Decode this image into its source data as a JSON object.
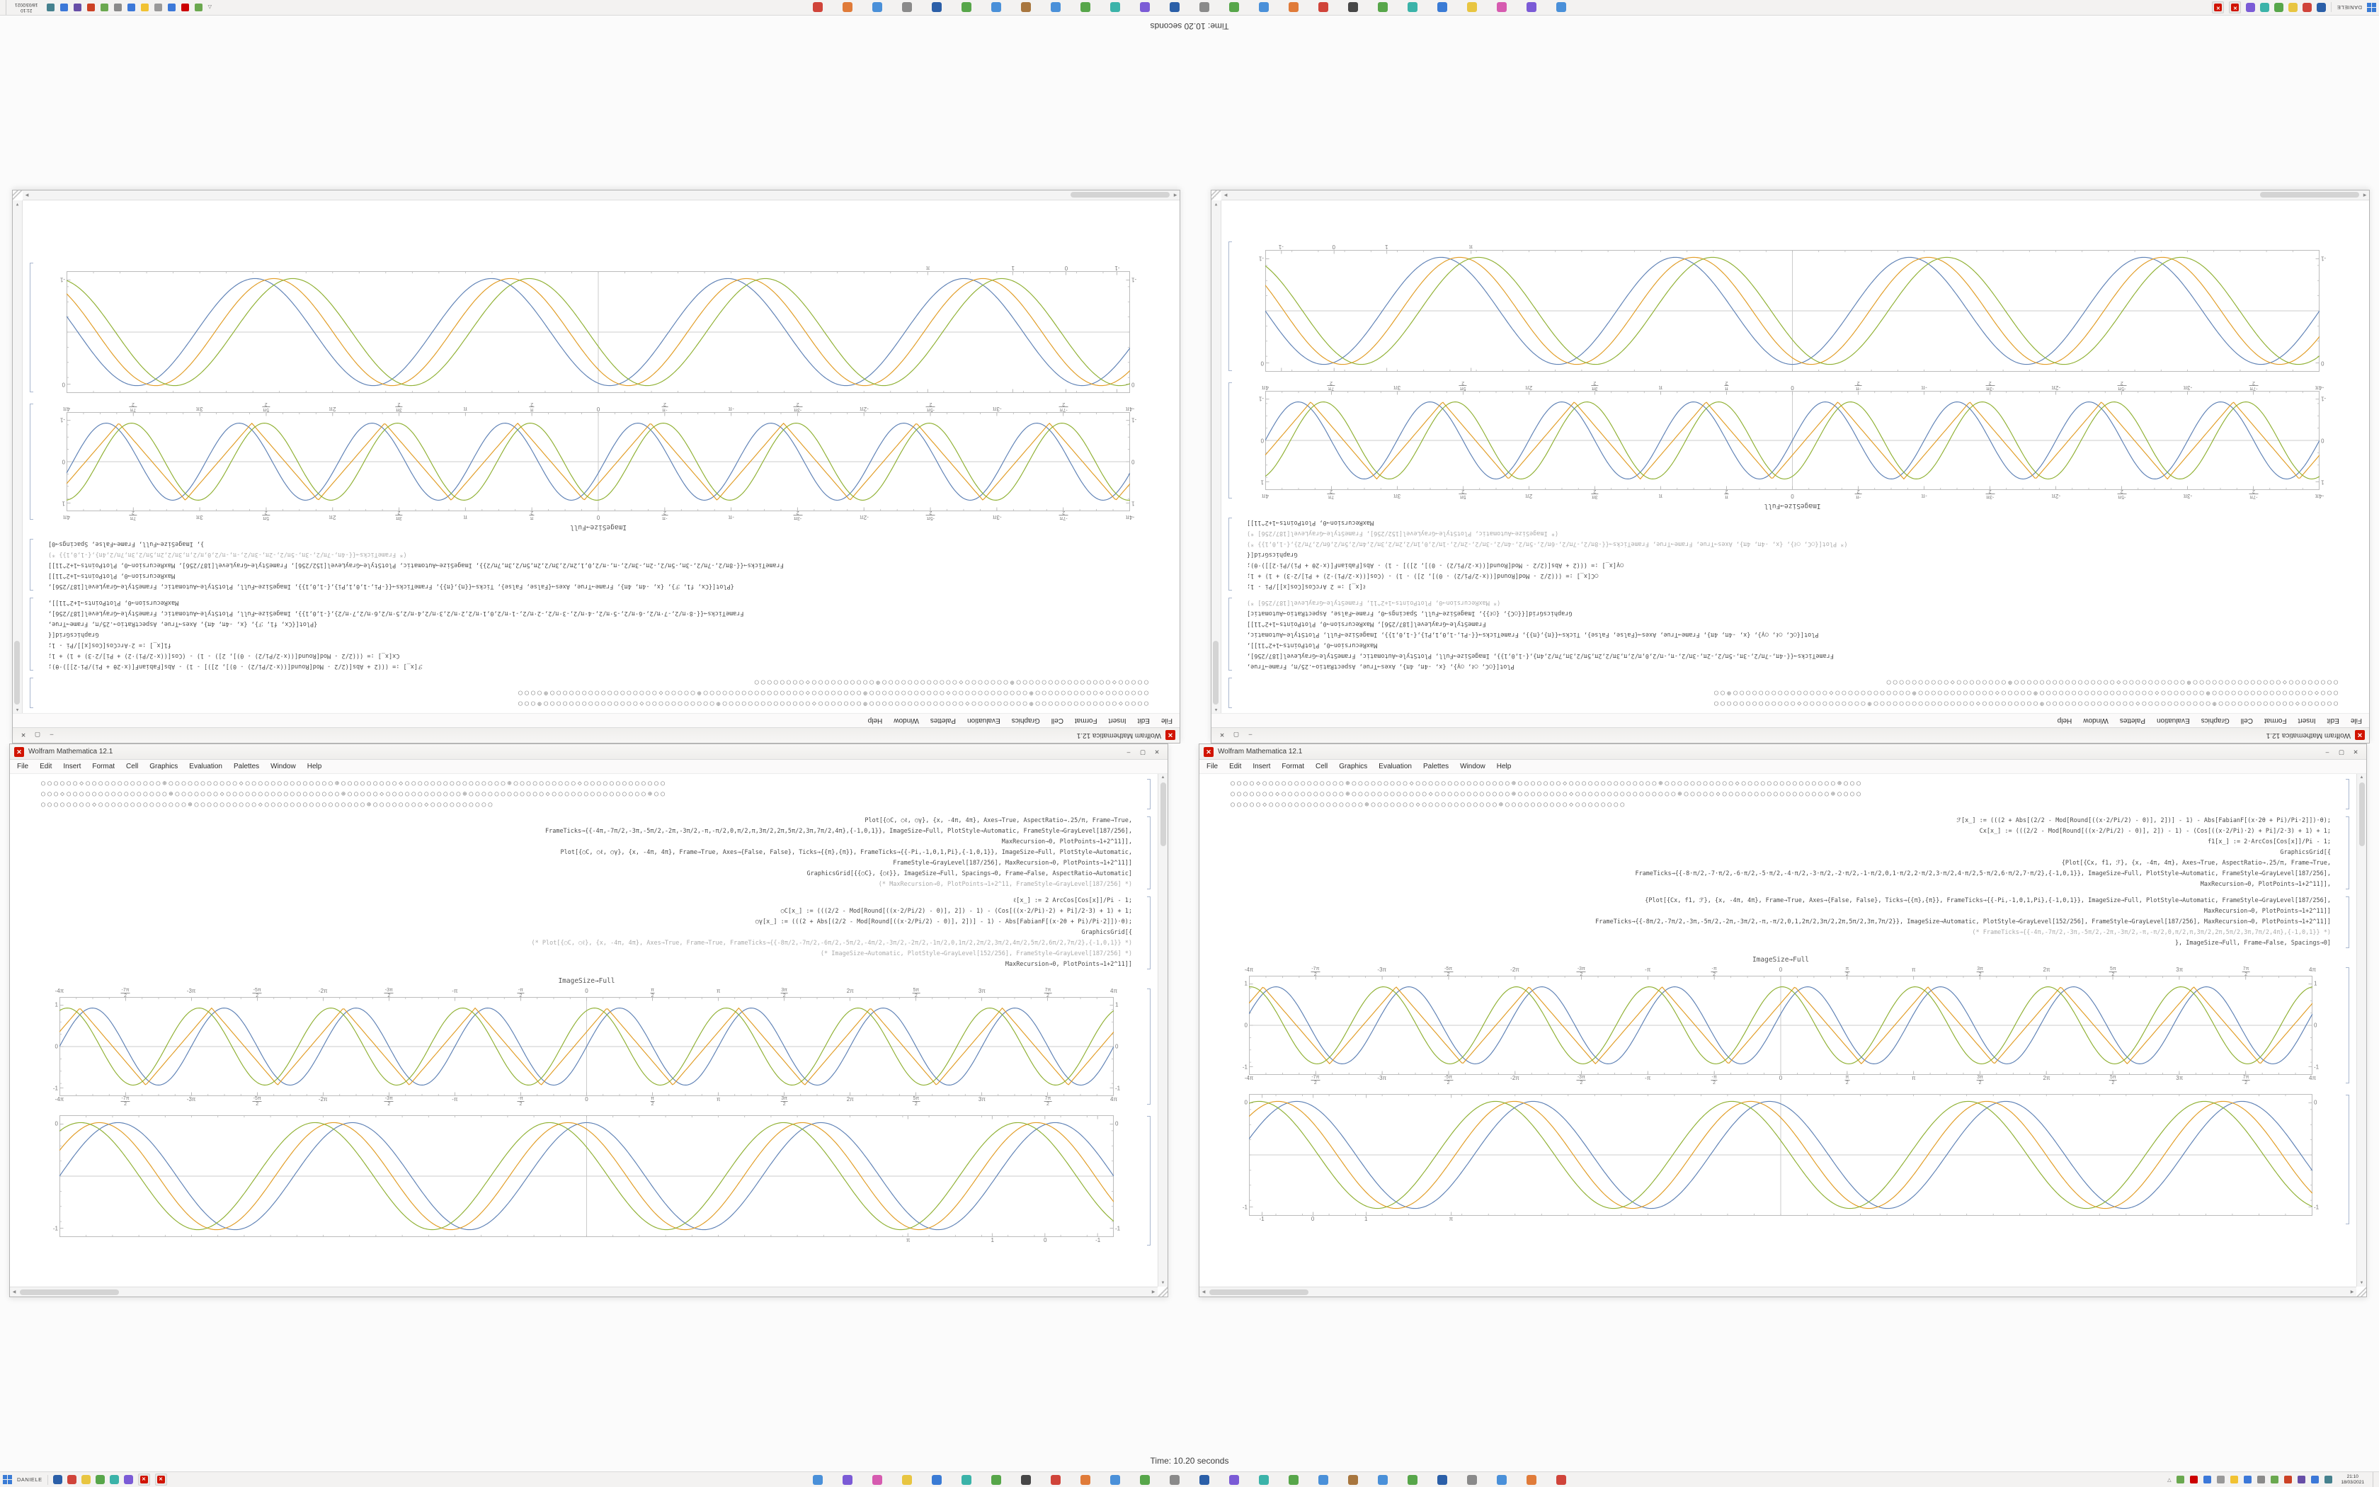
{
  "status_line": "Time: 10.20 seconds",
  "icons": {
    "spikey_glyph": "✕",
    "minimize": "–",
    "maximize": "▢",
    "close": "✕",
    "scroll_up": "▲",
    "scroll_down": "▼",
    "scroll_left": "◀",
    "scroll_right": "▶",
    "tray_chevron": "△"
  },
  "colors": {
    "frame": "#bcbcbc",
    "axis": "#cccccc",
    "spikey": "#d11300",
    "series_blue": "#5e81b5",
    "series_gold": "#e19c24",
    "series_green": "#8fb032"
  },
  "menu_items": [
    "File",
    "Edit",
    "Insert",
    "Format",
    "Cell",
    "Graphics",
    "Evaluation",
    "Palettes",
    "Window",
    "Help"
  ],
  "shared": {
    "xticks_halfpi": [
      "-4π",
      "-7π/2",
      "-3π",
      "-5π/2",
      "-2π",
      "-3π/2",
      "-π",
      "-π/2",
      "0",
      "π/2",
      "π",
      "3π/2",
      "2π",
      "5π/2",
      "3π",
      "7π/2",
      "4π"
    ]
  },
  "windows": [
    {
      "side": "left",
      "title": "Wolfram Mathematica 12.1",
      "glyph_lines": [
        "○○○○○○◇○○○○○○○○○○○○⊕○○○○○○○○○○○◇○○○○○○○○○○○○○○⊕○○○○○○○○○◇○○○○○○○○○○○○○○○○⊕○○○○○○○○○○◇○○○○○○○○○○○○○",
        "○○○◇○○○○○○○○○○○○○○○○⊕○○○○○○○◇○○○○○○○○○○○○○○○○○○⊕○○○○○◇○○○○○○○○○○○○⊕○○○○○○○○○○○○◇○○○○○○○○○○○○○○○⊕○○",
        "○○○○○○○○◇○○○○○○○○○○○○○○⊕○○○○○○○○○○◇○○○○○○○○○○○○○○○○⊕○○○○○○○○◇○○○○○○○○○○"
      ],
      "code_blocks": [
        {
          "lines": [
            {
              "t": "Plot[{○C, ○ℓ, ○γ}, {x, -4π, 4π}, Axes→True, AspectRatio→.25/π, Frame→True,"
            },
            {
              "t": "FrameTicks→{{-4π,-7π/2,-3π,-5π/2,-2π,-3π/2,-π,-π/2,0,π/2,π,3π/2,2π,5π/2,3π,7π/2,4π},{-1,0,1}}, ImageSize→Full, PlotStyle→Automatic, FrameStyle→GrayLevel[187/256],"
            },
            {
              "t": "MaxRecursion→0, PlotPoints→1+2^11]],"
            },
            {
              "t": "Plot[{○C, ○ℓ, ○γ}, {x, -4π, 4π}, Frame→True, Axes→{False, False}, Ticks→{{π},{π}}, FrameTicks→{{-Pi,-1,0,1,Pi},{-1,0,1}}, ImageSize→Full, PlotStyle→Automatic,"
            },
            {
              "t": "FrameStyle→GrayLevel[187/256], MaxRecursion→0, PlotPoints→1+2^11]]"
            },
            {
              "t": "GraphicsGrid[{{○C}, {○ℓ}}, ImageSize→Full, Spacings→0, Frame→False, AspectRatio→Automatic]"
            },
            {
              "t": "(* MaxRecursion→0, PlotPoints→1+2^11, FrameStyle→GrayLevel[187/256] *)",
              "m": true
            }
          ]
        },
        {
          "lines": [
            {
              "t": "ℓ[x_] := 2 ArcCos[Cos[x]]/Pi - 1;"
            },
            {
              "t": "○C[x_] := (((2/2 - Mod[Round[((x·2/Pi/2) - 0)], 2]) - 1) - (Cos[((x·2/Pi)·2) + Pi]/2·3) + 1) + 1;"
            },
            {
              "t": "○γ[x_] := (((2 + Abs[(2/2 - Mod[Round[((x·2/Pi/2) - 0)], 2])] - 1) - Abs[FabianF[(x·2θ + Pi)/Pi·2]])·θ);"
            },
            {
              "t": "GraphicsGrid[{"
            },
            {
              "t": "(* Plot[{○C, ○ℓ}, {x, -4π, 4π}, Axes→True, Frame→True, FrameTicks→{{-8π/2,-7π/2,-6π/2,-5π/2,-4π/2,-3π/2,-2π/2,-1π/2,0,1π/2,2π/2,3π/2,4π/2,5π/2,6π/2,7π/2},{-1,0,1}} *)",
              "m": true
            },
            {
              "t": "(* ImageSize→Automatic, PlotStyle→GrayLevel[152/256], FrameStyle→GrayLevel[187/256] *)",
              "m": true
            },
            {
              "t": "MaxRecursion→0, PlotPoints→1+2^11]]"
            }
          ]
        }
      ],
      "center_label": "ImageSize→Full",
      "plots": [
        {
          "h": 140,
          "top_labels": true,
          "xticks_ref": "xticks_halfpi",
          "minor_x": 64,
          "yticks": [
            {
              "pos": 0.08,
              "label": "1"
            },
            {
              "pos": 0.5,
              "label": "0"
            },
            {
              "pos": 0.92,
              "label": "-1"
            }
          ],
          "series": [
            {
              "shape": "sin",
              "cycles": 8,
              "phase": 0,
              "amp": 0.8,
              "color": "#5e81b5"
            },
            {
              "shape": "tri",
              "cycles": 8,
              "phase": 0.6,
              "amp": 0.8,
              "color": "#e19c24"
            },
            {
              "shape": "sin",
              "cycles": 8,
              "phase": 1.2,
              "amp": 0.8,
              "color": "#8fb032"
            }
          ]
        },
        {
          "h": 172,
          "top_labels": false,
          "minor_x": 40,
          "xticks": [
            {
              "pos": 0.805,
              "label": "π"
            },
            {
              "pos": 0.885,
              "label": "1"
            },
            {
              "pos": 0.935,
              "label": "0"
            },
            {
              "pos": 0.985,
              "label": "-1"
            }
          ],
          "yticks": [
            {
              "pos": 0.07,
              "label": "0"
            },
            {
              "pos": 0.93,
              "label": "-1"
            }
          ],
          "series": [
            {
              "shape": "sin",
              "cycles": 4.5,
              "phase": 0,
              "amp": 0.9,
              "color": "#5e81b5"
            },
            {
              "shape": "sin",
              "cycles": 4.5,
              "phase": 0.5,
              "amp": 0.9,
              "color": "#e19c24"
            },
            {
              "shape": "sin",
              "cycles": 4.5,
              "phase": 1.0,
              "amp": 0.9,
              "color": "#8fb032"
            }
          ]
        }
      ]
    },
    {
      "side": "right",
      "title": "Wolfram Mathematica 12.1",
      "glyph_lines": [
        "○○○○◇○○○○○○○○○○○○○⊕○○○○○○○○○◇○○○○○○○○○○○○○○○⊕○○○○○○○◇○○○○○○○○○○○○○○⊕○○○○○○○○○○○◇○○○○○○○○○○○○○○○⊕○○○",
        "○○○○○○○◇○○○○○○○○○○⊕○○○○○○○○○○○○◇○○○○○○○○○○○○⊕○○○○○○○○◇○○○○○○○○○○○○○○○○⊕○○○○○◇○○○○○○○○○○○○○○○○○⊕○○○○",
        "○○○○○◇○○○○○○○○○○○○○○○⊕○○○○○○○◇○○○○○○○○○○○○⊕○○○○○○○○○○◇○○○○○○○○"
      ],
      "code_blocks": [
        {
          "lines": [
            {
              "t": "ℱ[x_] := (((2 + Abs[(2/2 - Mod[Round[((x·2/Pi/2) - 0)], 2])] - 1) - Abs[FabianF[(x·2θ + Pi)/Pi·2]])·θ);"
            },
            {
              "t": "Cx[x_] := (((2/2 - Mod[Round[((x·2/Pi/2) - 0)], 2]) - 1) - (Cos[((x·2/Pi)·2) + Pi]/2·3) + 1) + 1;"
            },
            {
              "t": "f1[x_] := 2·ArcCos[Cos[x]]/Pi - 1;"
            },
            {
              "t": "GraphicsGrid[{"
            },
            {
              "t": "{Plot[{Cx, f1, ℱ}, {x, -4π, 4π}, Axes→True, AspectRatio→.25/π, Frame→True,"
            },
            {
              "t": "FrameTicks→{{-8·π/2,-7·π/2,-6·π/2,-5·π/2,-4·π/2,-3·π/2,-2·π/2,-1·π/2,0,1·π/2,2·π/2,3·π/2,4·π/2,5·π/2,6·π/2,7·π/2},{-1,0,1}}, ImageSize→Full, PlotStyle→Automatic, FrameStyle→GrayLevel[187/256],"
            },
            {
              "t": "MaxRecursion→0, PlotPoints→1+2^11]],"
            }
          ]
        },
        {
          "lines": [
            {
              "t": "{Plot[{Cx, f1, ℱ}, {x, -4π, 4π}, Frame→True, Axes→{False, False}, Ticks→{{π},{π}}, FrameTicks→{{-Pi,-1,0,1,Pi},{-1,0,1}}, ImageSize→Full, PlotStyle→Automatic, FrameStyle→GrayLevel[187/256],"
            },
            {
              "t": "MaxRecursion→0, PlotPoints→1+2^11]]"
            },
            {
              "t": "FrameTicks→{{-8π/2,-7π/2,-3π,-5π/2,-2π,-3π/2,-π,-π/2,0,1,2π/2,3π/2,2π,5π/2,3π,7π/2}}, ImageSize→Automatic, PlotStyle→GrayLevel[152/256], FrameStyle→GrayLevel[187/256], MaxRecursion→0, PlotPoints→1+2^11]]"
            },
            {
              "t": "(* FrameTicks→{{-4π,-7π/2,-3π,-5π/2,-2π,-3π/2,-π,-π/2,0,π/2,π,3π/2,2π,5π/2,3π,7π/2,4π},{-1,0,1}} *)",
              "m": true
            },
            {
              "t": "}, ImageSize→Full, Frame→False, Spacings→0]"
            }
          ]
        }
      ],
      "center_label": "ImageSize→Full",
      "plots": [
        {
          "h": 140,
          "top_labels": true,
          "xticks_ref": "xticks_halfpi",
          "minor_x": 64,
          "yticks": [
            {
              "pos": 0.08,
              "label": "1"
            },
            {
              "pos": 0.5,
              "label": "0"
            },
            {
              "pos": 0.92,
              "label": "-1"
            }
          ],
          "series": [
            {
              "shape": "sin",
              "cycles": 8,
              "phase": 0.3,
              "amp": 0.8,
              "color": "#5e81b5"
            },
            {
              "shape": "tri",
              "cycles": 8,
              "phase": 0.9,
              "amp": 0.8,
              "color": "#e19c24"
            },
            {
              "shape": "sin",
              "cycles": 8,
              "phase": 1.5,
              "amp": 0.8,
              "color": "#8fb032"
            }
          ]
        },
        {
          "h": 172,
          "top_labels": false,
          "minor_x": 40,
          "xticks": [
            {
              "pos": 0.012,
              "label": "-1"
            },
            {
              "pos": 0.06,
              "label": "0"
            },
            {
              "pos": 0.11,
              "label": "1"
            },
            {
              "pos": 0.19,
              "label": "π"
            }
          ],
          "yticks": [
            {
              "pos": 0.07,
              "label": "0"
            },
            {
              "pos": 0.93,
              "label": "-1"
            }
          ],
          "series": [
            {
              "shape": "sin",
              "cycles": 4.5,
              "phase": 0.3,
              "amp": 0.9,
              "color": "#5e81b5"
            },
            {
              "shape": "sin",
              "cycles": 4.5,
              "phase": 0.8,
              "amp": 0.9,
              "color": "#e19c24"
            },
            {
              "shape": "sin",
              "cycles": 4.5,
              "phase": 1.3,
              "amp": 0.9,
              "color": "#8fb032"
            }
          ]
        }
      ]
    }
  ],
  "taskbar": {
    "left_label": "DANIELE",
    "left_icons": [
      "#2b5fa8",
      "#d0443a",
      "#e8c541",
      "#57a64a",
      "#3bb3a9",
      "#7b5bd6"
    ],
    "window_buttons": [
      "mathematica-window-1",
      "mathematica-window-2"
    ],
    "pinned_icons": [
      "#4a90d9",
      "#7b5bd6",
      "#d65bb0",
      "#e8c541",
      "#3a7bd5",
      "#3bb3a9",
      "#57a64a",
      "#474747",
      "#d0443a",
      "#e07b39",
      "#4a90d9",
      "#57a64a",
      "#8a8a8a",
      "#2b5fa8",
      "#7b5bd6",
      "#3bb3a9",
      "#57a64a",
      "#4a90d9",
      "#a8763e",
      "#4a90d9",
      "#57a64a",
      "#2b5fa8",
      "#8a8a8a",
      "#4a90d9",
      "#e07b39",
      "#d0443a"
    ],
    "tray_icons": [
      "#6aa84f",
      "#cc0000",
      "#3c78d8",
      "#999999",
      "#f1c232",
      "#3c78d8",
      "#8a8a8a",
      "#6aa84f",
      "#cc4125",
      "#674ea7",
      "#3c78d8",
      "#45818e"
    ],
    "clock_time": "21:10",
    "clock_date": "18/03/2021"
  }
}
